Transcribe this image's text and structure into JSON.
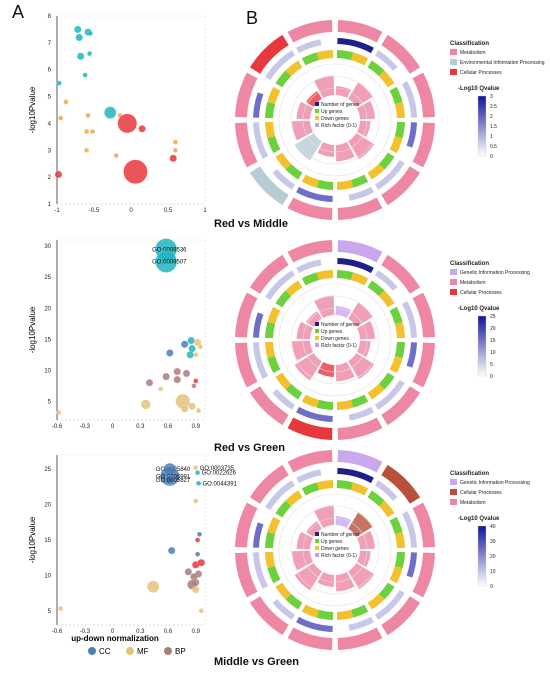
{
  "panel_labels": {
    "a": "A",
    "b": "B"
  },
  "section_titles": [
    "Red vs Middle",
    "Red vs Green",
    "Middle vs Green"
  ],
  "bubble_legend": {
    "title": "up-down normalization",
    "items": [
      {
        "label": "CC",
        "color": "#4A7FB8"
      },
      {
        "label": "MF",
        "color": "#E5C27A"
      },
      {
        "label": "BP",
        "color": "#A87C7A"
      }
    ]
  },
  "circos_legends": [
    {
      "title": "Classification",
      "items": [
        {
          "label": "Metabolism",
          "color": "#EE87A4"
        },
        {
          "label": "Environmental Information Processing",
          "color": "#B8CCD4"
        },
        {
          "label": "Cellular Processes",
          "color": "#E8373D"
        }
      ],
      "qvalue_title": "-Log10 Qvalue",
      "qvalue_ticks": [
        "3",
        "2.5",
        "2",
        "1.5",
        "1",
        "0.5",
        "0"
      ]
    },
    {
      "title": "Classification",
      "items": [
        {
          "label": "Genetic Information Processing",
          "color": "#C9A8F0"
        },
        {
          "label": "Metabolism",
          "color": "#EE87A4"
        },
        {
          "label": "Cellular Processes",
          "color": "#E8373D"
        }
      ],
      "qvalue_title": "-Log10 Qvalue",
      "qvalue_ticks": [
        "25",
        "20",
        "15",
        "10",
        "5",
        "0"
      ]
    },
    {
      "title": "Classification",
      "items": [
        {
          "label": "Genetic Information Processing",
          "color": "#C9A8F0"
        },
        {
          "label": "Cellular Processes",
          "color": "#B8503A"
        },
        {
          "label": "Metabolism",
          "color": "#EE87A4"
        }
      ],
      "qvalue_title": "-Log10 Qvalue",
      "qvalue_ticks": [
        "40",
        "30",
        "20",
        "10",
        "0"
      ]
    }
  ],
  "ring_legend": [
    {
      "label": "Number of genes",
      "color": "#1F1F8C"
    },
    {
      "label": "Up genes",
      "color": "#6CD13D"
    },
    {
      "label": "Down genes",
      "color": "#F2C12E"
    },
    {
      "label": "Rich factor (0-1)",
      "color": "#C8A2D6"
    }
  ],
  "chart_data": [
    {
      "type": "scatter",
      "title": "Red vs Middle",
      "ylabel": "-log10Pvalue",
      "xlim": [
        -1,
        1
      ],
      "ylim": [
        1,
        8
      ],
      "xticks": [
        "-1",
        "-0.5",
        "0",
        "0.5",
        "1"
      ],
      "yticks": [
        "1",
        "2",
        "3",
        "4",
        "5",
        "6",
        "7",
        "8"
      ],
      "points": [
        {
          "x": -0.72,
          "y": 7.5,
          "size": 3,
          "color": "#1FB5C0"
        },
        {
          "x": -0.58,
          "y": 7.4,
          "size": 3,
          "color": "#1FB5C0"
        },
        {
          "x": -0.55,
          "y": 7.35,
          "size": 2,
          "color": "#1FB5C0"
        },
        {
          "x": -0.7,
          "y": 7.2,
          "size": 3,
          "color": "#1FB5C0"
        },
        {
          "x": -0.56,
          "y": 6.6,
          "size": 2,
          "color": "#1FB5C0"
        },
        {
          "x": -0.68,
          "y": 6.5,
          "size": 3,
          "color": "#1FB5C0"
        },
        {
          "x": -0.62,
          "y": 5.8,
          "size": 2,
          "color": "#1FB5C0"
        },
        {
          "x": -0.97,
          "y": 5.5,
          "size": 2,
          "color": "#1FB5C0"
        },
        {
          "x": -0.28,
          "y": 4.4,
          "size": 5,
          "color": "#1FB5C0"
        },
        {
          "x": -0.88,
          "y": 4.8,
          "size": 2,
          "color": "#F5A54A"
        },
        {
          "x": -0.95,
          "y": 4.2,
          "size": 2,
          "color": "#F5A54A"
        },
        {
          "x": -0.58,
          "y": 4.3,
          "size": 2,
          "color": "#F5A54A"
        },
        {
          "x": -0.15,
          "y": 4.3,
          "size": 2,
          "color": "#F5A54A"
        },
        {
          "x": -0.05,
          "y": 4.0,
          "size": 8,
          "color": "#E8373D"
        },
        {
          "x": 0.15,
          "y": 3.8,
          "size": 3,
          "color": "#E8373D"
        },
        {
          "x": -0.6,
          "y": 3.7,
          "size": 2,
          "color": "#F5A54A"
        },
        {
          "x": -0.52,
          "y": 3.7,
          "size": 2,
          "color": "#F5A54A"
        },
        {
          "x": 0.6,
          "y": 3.3,
          "size": 2,
          "color": "#F5A54A"
        },
        {
          "x": -0.6,
          "y": 3.0,
          "size": 2,
          "color": "#F5A54A"
        },
        {
          "x": 0.6,
          "y": 3.0,
          "size": 2,
          "color": "#F5A54A"
        },
        {
          "x": -0.2,
          "y": 2.8,
          "size": 2,
          "color": "#F5A54A"
        },
        {
          "x": 0.57,
          "y": 2.7,
          "size": 3,
          "color": "#E8373D"
        },
        {
          "x": 0.06,
          "y": 2.2,
          "size": 10,
          "color": "#E8373D"
        },
        {
          "x": -0.98,
          "y": 2.1,
          "size": 3,
          "color": "#E8373D"
        }
      ]
    },
    {
      "type": "scatter",
      "title": "Red vs Green",
      "ylabel": "-log10Pvalue",
      "xlim": [
        -0.6,
        1.0
      ],
      "ylim": [
        2,
        31
      ],
      "xticks": [
        "-0.6",
        "-0.3",
        "0",
        "0.3",
        "0.6",
        "0.9"
      ],
      "yticks": [
        "5",
        "10",
        "15",
        "20",
        "25",
        "30"
      ],
      "points": [
        {
          "x": 0.58,
          "y": 29.5,
          "size": 9,
          "color": "#1FB5C0",
          "label": "GO:0009536"
        },
        {
          "x": 0.58,
          "y": 27.5,
          "size": 9,
          "color": "#1FB5C0",
          "label": "GO:0009507"
        },
        {
          "x": 0.85,
          "y": 14.8,
          "size": 3,
          "color": "#1FB5C0"
        },
        {
          "x": 0.92,
          "y": 14.5,
          "size": 3,
          "color": "#E5C27A"
        },
        {
          "x": 0.78,
          "y": 14.2,
          "size": 3,
          "color": "#4A7FB8"
        },
        {
          "x": 0.86,
          "y": 13.5,
          "size": 3,
          "color": "#1FB5C0"
        },
        {
          "x": 0.95,
          "y": 13.8,
          "size": 2,
          "color": "#E5C27A"
        },
        {
          "x": 0.62,
          "y": 12.8,
          "size": 3,
          "color": "#4A7FB8"
        },
        {
          "x": 0.84,
          "y": 12.5,
          "size": 3,
          "color": "#1FB5C0"
        },
        {
          "x": 0.9,
          "y": 12.5,
          "size": 2,
          "color": "#E5C27A"
        },
        {
          "x": 0.7,
          "y": 9.8,
          "size": 3,
          "color": "#A87C7A"
        },
        {
          "x": 0.58,
          "y": 9.0,
          "size": 3,
          "color": "#A87C7A"
        },
        {
          "x": 0.8,
          "y": 9.5,
          "size": 3,
          "color": "#A87C7A"
        },
        {
          "x": 0.4,
          "y": 8.0,
          "size": 3,
          "color": "#A87C7A"
        },
        {
          "x": 0.7,
          "y": 8.5,
          "size": 3,
          "color": "#A87C7A"
        },
        {
          "x": 0.9,
          "y": 8.3,
          "size": 2,
          "color": "#E8373D"
        },
        {
          "x": 0.88,
          "y": 7.5,
          "size": 2,
          "color": "#A87C7A"
        },
        {
          "x": 0.52,
          "y": 7.0,
          "size": 2,
          "color": "#E5C27A"
        },
        {
          "x": 0.76,
          "y": 5.0,
          "size": 6,
          "color": "#E5C27A"
        },
        {
          "x": 0.36,
          "y": 4.5,
          "size": 4,
          "color": "#E5C27A"
        },
        {
          "x": 0.86,
          "y": 4.2,
          "size": 3,
          "color": "#E5C27A"
        },
        {
          "x": 0.78,
          "y": 3.8,
          "size": 3,
          "color": "#E5C27A"
        },
        {
          "x": 0.93,
          "y": 3.5,
          "size": 2,
          "color": "#E5C27A"
        },
        {
          "x": -0.58,
          "y": 3.2,
          "size": 2,
          "color": "#E5C27A"
        }
      ]
    },
    {
      "type": "scatter",
      "title": "Middle vs Green",
      "ylabel": "-log10Pvalue",
      "xlabel": "up-down normalization",
      "xlim": [
        -0.6,
        1.0
      ],
      "ylim": [
        3,
        27
      ],
      "xticks": [
        "-0.6",
        "-0.3",
        "0",
        "0.3",
        "0.6",
        "0.9"
      ],
      "yticks": [
        "5",
        "10",
        "15",
        "20",
        "25"
      ],
      "points": [
        {
          "x": 0.62,
          "y": 25.0,
          "size": 5,
          "color": "#4A7FB8",
          "label": "GO:0005840"
        },
        {
          "x": 0.62,
          "y": 24.0,
          "size": 8,
          "color": "#4A7FB8",
          "label": "GO:0005991"
        },
        {
          "x": 0.9,
          "y": 25.2,
          "size": 2,
          "color": "#E5C27A",
          "label": "GO:0003735"
        },
        {
          "x": 0.92,
          "y": 24.5,
          "size": 2,
          "color": "#1FB5C0",
          "label": "GO:0022626"
        },
        {
          "x": 0.62,
          "y": 23.5,
          "size": 4,
          "color": "#4A7FB8",
          "label": "GO:0005827"
        },
        {
          "x": 0.93,
          "y": 23.0,
          "size": 2,
          "color": "#1FB5C0",
          "label": "GO:0044391"
        },
        {
          "x": 0.9,
          "y": 20.5,
          "size": 2,
          "color": "#E5C27A"
        },
        {
          "x": 0.94,
          "y": 15.8,
          "size": 2,
          "color": "#4A7FB8"
        },
        {
          "x": 0.92,
          "y": 15.0,
          "size": 2,
          "color": "#E8373D"
        },
        {
          "x": 0.64,
          "y": 13.5,
          "size": 3,
          "color": "#4A7FB8"
        },
        {
          "x": 0.92,
          "y": 13.0,
          "size": 2,
          "color": "#4A7FB8"
        },
        {
          "x": 0.9,
          "y": 11.5,
          "size": 3,
          "color": "#E8373D"
        },
        {
          "x": 0.96,
          "y": 11.8,
          "size": 3,
          "color": "#E8373D"
        },
        {
          "x": 0.82,
          "y": 10.5,
          "size": 3,
          "color": "#A87C7A"
        },
        {
          "x": 0.93,
          "y": 10.2,
          "size": 3,
          "color": "#A87C7A"
        },
        {
          "x": 0.88,
          "y": 9.8,
          "size": 3,
          "color": "#A87C7A"
        },
        {
          "x": 0.9,
          "y": 9.0,
          "size": 3,
          "color": "#A87C7A"
        },
        {
          "x": 0.86,
          "y": 8.7,
          "size": 4,
          "color": "#A87C7A"
        },
        {
          "x": 0.44,
          "y": 8.4,
          "size": 5,
          "color": "#E5C27A"
        },
        {
          "x": 0.9,
          "y": 8.0,
          "size": 3,
          "color": "#E5C27A"
        },
        {
          "x": 0.96,
          "y": 5.0,
          "size": 2,
          "color": "#E5C27A"
        },
        {
          "x": -0.56,
          "y": 5.3,
          "size": 2,
          "color": "#E5C27A"
        }
      ]
    }
  ]
}
